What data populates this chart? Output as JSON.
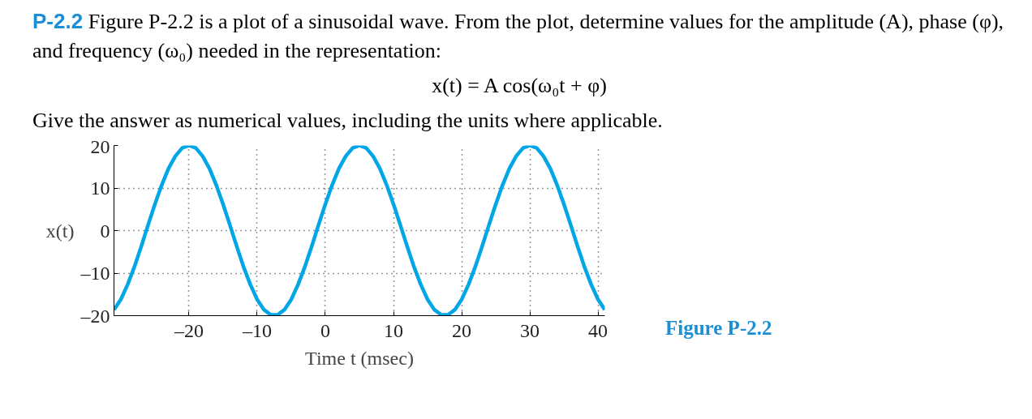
{
  "chart_data": {
    "type": "line",
    "title": "P-2.2 Figure P-2.2 is a plot of a sinusoidal wave. From the plot, determine values for the amplitude (A), phase (φ), and frequency (ω₀) needed in the representation:",
    "subtitle": "x(t) = A cos(ω₀t + φ)",
    "annotations": [
      "Give the answer as numerical values, including the units where applicable.",
      "Figure P-2.2"
    ],
    "xlabel": "Time t (msec)",
    "ylabel": "x(t)",
    "x": [
      -31,
      -30,
      -29,
      -28,
      -27,
      -26,
      -25,
      -24,
      -23,
      -22,
      -21,
      -20,
      -19,
      -18,
      -17,
      -16,
      -15,
      -14,
      -13,
      -12,
      -11,
      -10,
      -9,
      -8,
      -7,
      -6,
      -5,
      -4,
      -3,
      -2,
      -1,
      0,
      1,
      2,
      3,
      4,
      5,
      6,
      7,
      8,
      9,
      10,
      11,
      12,
      13,
      14,
      15,
      16,
      17,
      18,
      19,
      20,
      21,
      22,
      23,
      24,
      25,
      26,
      27,
      28,
      29,
      30,
      31,
      32,
      33,
      34,
      35,
      36,
      37,
      38,
      39,
      40,
      41
    ],
    "series": [
      {
        "color": "#00a6e6",
        "values": [
          -18.6,
          -16.2,
          -12.7,
          -8.5,
          -3.7,
          1.3,
          6.2,
          10.7,
          14.6,
          17.5,
          19.4,
          20,
          19.4,
          17.5,
          14.6,
          10.7,
          6.2,
          1.3,
          -3.7,
          -8.5,
          -12.7,
          -16.2,
          -18.6,
          -19.8,
          -19.8,
          -18.6,
          -16.2,
          -12.7,
          -8.5,
          -3.7,
          1.3,
          6.2,
          10.7,
          14.6,
          17.5,
          19.4,
          20,
          19.4,
          17.5,
          14.6,
          10.7,
          6.2,
          1.3,
          -3.7,
          -8.5,
          -12.7,
          -16.2,
          -18.6,
          -19.8,
          -19.8,
          -18.6,
          -16.2,
          -12.7,
          -8.5,
          -3.7,
          1.3,
          6.2,
          10.7,
          14.6,
          17.5,
          19.4,
          20,
          19.4,
          17.5,
          14.6,
          10.7,
          6.2,
          1.3,
          -3.7,
          -8.5,
          -12.7,
          -16.2,
          -18.6
        ]
      }
    ],
    "xlim": [
      -31,
      41
    ],
    "ylim": [
      -20,
      20
    ],
    "xticks": [
      {
        "value": -20,
        "label": "–20"
      },
      {
        "value": -10,
        "label": "–10"
      },
      0,
      10,
      20,
      30,
      40
    ],
    "yticks": [
      {
        "value": -20,
        "label": "–20"
      },
      {
        "value": -10,
        "label": "–10"
      },
      0,
      10,
      20
    ],
    "grid": true,
    "marker": "none",
    "line_style": "solid"
  }
}
